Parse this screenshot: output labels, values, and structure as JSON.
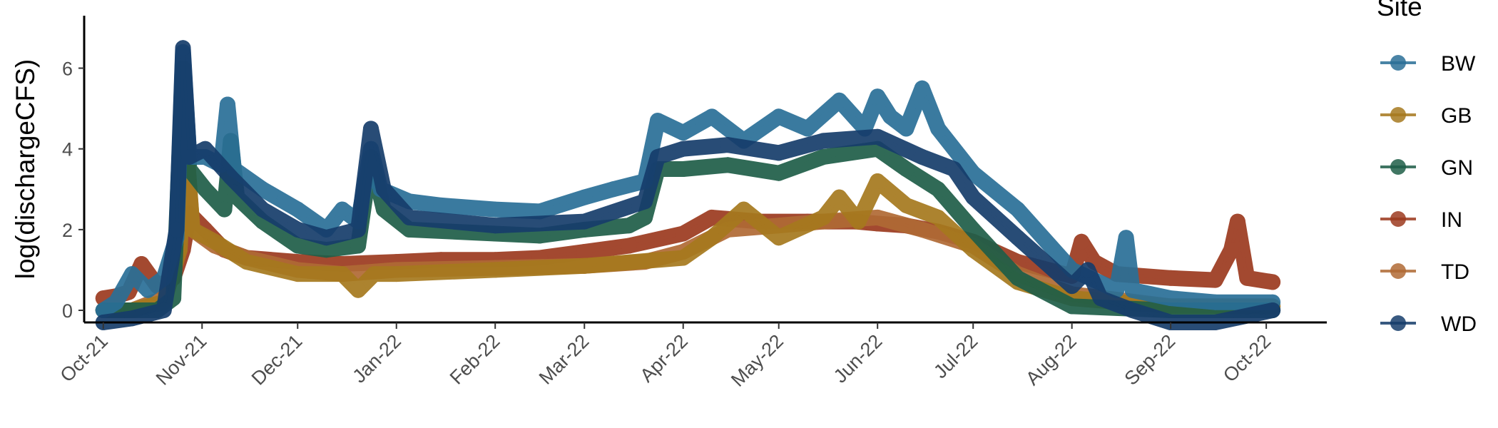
{
  "chart_data": {
    "type": "line",
    "title": "",
    "xlabel": "",
    "ylabel": "log(dischargeCFS)",
    "x_axis_type": "date",
    "xlim": [
      "2021-09-25",
      "2022-10-20"
    ],
    "ylim": [
      -0.3,
      7.3
    ],
    "y_ticks": [
      0,
      2,
      4,
      6
    ],
    "x_ticks": [
      {
        "date": "2021-10-01",
        "label": "Oct-21"
      },
      {
        "date": "2021-11-01",
        "label": "Nov-21"
      },
      {
        "date": "2021-12-01",
        "label": "Dec-21"
      },
      {
        "date": "2022-01-01",
        "label": "Jan-22"
      },
      {
        "date": "2022-02-01",
        "label": "Feb-22"
      },
      {
        "date": "2022-03-01",
        "label": "Mar-22"
      },
      {
        "date": "2022-04-01",
        "label": "Apr-22"
      },
      {
        "date": "2022-05-01",
        "label": "May-22"
      },
      {
        "date": "2022-06-01",
        "label": "Jun-22"
      },
      {
        "date": "2022-07-01",
        "label": "Jul-22"
      },
      {
        "date": "2022-08-01",
        "label": "Aug-22"
      },
      {
        "date": "2022-09-01",
        "label": "Sep-22"
      },
      {
        "date": "2022-10-01",
        "label": "Oct-22"
      }
    ],
    "grid": false,
    "legend": {
      "title": "Site",
      "position": "right"
    },
    "series": [
      {
        "name": "IN",
        "color": "#9c3a1f",
        "x": [
          "2021-10-01",
          "2021-10-05",
          "2021-10-09",
          "2021-10-13",
          "2021-10-18",
          "2021-10-23",
          "2021-10-26",
          "2021-10-28",
          "2021-11-02",
          "2021-11-08",
          "2021-11-15",
          "2021-12-01",
          "2021-12-15",
          "2022-01-01",
          "2022-01-15",
          "2022-02-01",
          "2022-02-15",
          "2022-03-01",
          "2022-03-15",
          "2022-04-01",
          "2022-04-10",
          "2022-04-25",
          "2022-05-10",
          "2022-05-25",
          "2022-06-01",
          "2022-06-10",
          "2022-06-20",
          "2022-07-01",
          "2022-07-15",
          "2022-08-01",
          "2022-08-04",
          "2022-08-08",
          "2022-08-15",
          "2022-09-01",
          "2022-09-15",
          "2022-09-20",
          "2022-09-22",
          "2022-09-25",
          "2022-10-03"
        ],
        "y": [
          0.3,
          0.35,
          0.45,
          1.15,
          0.6,
          0.8,
          1.5,
          2.4,
          2.0,
          1.5,
          1.3,
          1.2,
          1.15,
          1.2,
          1.25,
          1.25,
          1.3,
          1.45,
          1.6,
          1.9,
          2.3,
          2.2,
          2.2,
          2.2,
          2.15,
          2.1,
          1.95,
          1.7,
          1.2,
          0.85,
          1.7,
          1.2,
          0.9,
          0.8,
          0.75,
          1.5,
          2.2,
          0.8,
          0.7
        ]
      },
      {
        "name": "TD",
        "color": "#b06a35",
        "x": [
          "2021-10-01",
          "2021-10-10",
          "2021-10-20",
          "2021-10-25",
          "2021-10-27",
          "2021-10-29",
          "2021-11-05",
          "2021-11-15",
          "2021-12-01",
          "2021-12-15",
          "2022-01-01",
          "2022-02-01",
          "2022-03-01",
          "2022-03-20",
          "2022-04-01",
          "2022-04-15",
          "2022-05-01",
          "2022-05-15",
          "2022-06-01",
          "2022-06-15",
          "2022-07-01",
          "2022-07-15",
          "2022-08-01",
          "2022-09-01",
          "2022-10-03"
        ],
        "y": [
          0,
          0,
          0.3,
          1.8,
          4.1,
          2.0,
          1.6,
          1.3,
          1.0,
          0.9,
          1.0,
          1.05,
          1.1,
          1.2,
          1.45,
          2.0,
          2.1,
          2.2,
          2.3,
          2.0,
          1.6,
          0.9,
          0.4,
          0.1,
          0.1
        ]
      },
      {
        "name": "GB",
        "color": "#a6791e",
        "x": [
          "2021-10-01",
          "2021-10-10",
          "2021-10-20",
          "2021-10-25",
          "2021-10-27",
          "2021-10-29",
          "2021-11-05",
          "2021-11-15",
          "2021-12-01",
          "2021-12-15",
          "2021-12-20",
          "2021-12-25",
          "2022-01-01",
          "2022-02-01",
          "2022-03-01",
          "2022-04-01",
          "2022-04-10",
          "2022-04-20",
          "2022-05-01",
          "2022-05-15",
          "2022-05-20",
          "2022-05-26",
          "2022-06-01",
          "2022-06-10",
          "2022-06-20",
          "2022-07-01",
          "2022-07-15",
          "2022-08-01",
          "2022-09-01",
          "2022-10-03"
        ],
        "y": [
          0,
          0,
          0.2,
          1.5,
          4.2,
          2.0,
          1.7,
          1.2,
          0.9,
          0.9,
          0.5,
          0.9,
          0.9,
          1.0,
          1.1,
          1.3,
          1.8,
          2.5,
          1.8,
          2.3,
          2.8,
          2.2,
          3.2,
          2.6,
          2.3,
          1.5,
          0.7,
          0.3,
          0.1,
          0.1
        ]
      },
      {
        "name": "GN",
        "color": "#1f5e48",
        "x": [
          "2021-10-01",
          "2021-10-10",
          "2021-10-18",
          "2021-10-23",
          "2021-10-26",
          "2021-10-28",
          "2021-11-02",
          "2021-11-08",
          "2021-11-10",
          "2021-11-12",
          "2021-11-20",
          "2021-12-01",
          "2021-12-10",
          "2021-12-20",
          "2021-12-24",
          "2021-12-28",
          "2022-01-05",
          "2022-02-01",
          "2022-02-15",
          "2022-03-01",
          "2022-03-15",
          "2022-03-20",
          "2022-03-24",
          "2022-04-01",
          "2022-04-15",
          "2022-05-01",
          "2022-05-15",
          "2022-06-01",
          "2022-06-10",
          "2022-06-20",
          "2022-07-01",
          "2022-07-15",
          "2022-08-01",
          "2022-09-01",
          "2022-10-03"
        ],
        "y": [
          0,
          0,
          0,
          0.3,
          6.0,
          3.5,
          3.0,
          2.5,
          4.2,
          2.8,
          2.2,
          1.6,
          1.5,
          1.6,
          3.8,
          2.5,
          2.0,
          1.9,
          1.85,
          2.0,
          2.1,
          2.3,
          3.5,
          3.5,
          3.6,
          3.4,
          3.8,
          4.0,
          3.5,
          3.0,
          2.0,
          0.8,
          0.1,
          0.0,
          0.0
        ]
      },
      {
        "name": "BW",
        "color": "#2a6f97",
        "x": [
          "2021-10-01",
          "2021-10-05",
          "2021-10-10",
          "2021-10-15",
          "2021-10-20",
          "2021-10-24",
          "2021-10-26",
          "2021-10-28",
          "2021-11-02",
          "2021-11-07",
          "2021-11-09",
          "2021-11-11",
          "2021-11-20",
          "2021-12-01",
          "2021-12-10",
          "2021-12-15",
          "2021-12-20",
          "2021-12-24",
          "2021-12-27",
          "2022-01-05",
          "2022-01-15",
          "2022-02-01",
          "2022-02-15",
          "2022-03-01",
          "2022-03-10",
          "2022-03-20",
          "2022-03-24",
          "2022-04-01",
          "2022-04-10",
          "2022-04-20",
          "2022-05-01",
          "2022-05-10",
          "2022-05-20",
          "2022-05-28",
          "2022-06-01",
          "2022-06-05",
          "2022-06-10",
          "2022-06-15",
          "2022-06-20",
          "2022-07-01",
          "2022-07-15",
          "2022-08-01",
          "2022-08-15",
          "2022-08-18",
          "2022-08-20",
          "2022-09-01",
          "2022-09-15",
          "2022-10-03"
        ],
        "y": [
          0,
          0.2,
          0.9,
          0.5,
          0.8,
          1.8,
          6.4,
          3.8,
          3.8,
          3.6,
          5.1,
          3.5,
          3.0,
          2.5,
          2.0,
          2.5,
          2.2,
          4.0,
          3.0,
          2.7,
          2.6,
          2.5,
          2.45,
          2.8,
          3.0,
          3.2,
          4.7,
          4.4,
          4.8,
          4.2,
          4.8,
          4.5,
          5.2,
          4.5,
          5.3,
          4.8,
          4.5,
          5.5,
          4.5,
          3.4,
          2.5,
          1.0,
          0.5,
          1.8,
          0.5,
          0.3,
          0.2,
          0.2
        ]
      },
      {
        "name": "WD",
        "color": "#163d6b",
        "x": [
          "2021-10-01",
          "2021-10-10",
          "2021-10-20",
          "2021-10-24",
          "2021-10-26",
          "2021-10-28",
          "2021-11-02",
          "2021-11-10",
          "2021-11-20",
          "2021-12-01",
          "2021-12-10",
          "2021-12-20",
          "2021-12-24",
          "2021-12-28",
          "2022-01-05",
          "2022-02-01",
          "2022-03-01",
          "2022-03-20",
          "2022-03-24",
          "2022-04-01",
          "2022-04-15",
          "2022-05-01",
          "2022-05-15",
          "2022-06-01",
          "2022-06-15",
          "2022-06-25",
          "2022-07-01",
          "2022-07-15",
          "2022-08-01",
          "2022-08-06",
          "2022-08-10",
          "2022-08-20",
          "2022-09-01",
          "2022-09-15",
          "2022-10-03"
        ],
        "y": [
          -0.3,
          -0.2,
          0.0,
          2.0,
          6.5,
          3.8,
          4.0,
          3.3,
          2.5,
          2.0,
          1.8,
          2.0,
          4.5,
          3.0,
          2.3,
          2.1,
          2.2,
          2.7,
          3.8,
          4.0,
          4.1,
          3.9,
          4.2,
          4.3,
          3.8,
          3.5,
          2.8,
          1.8,
          0.6,
          1.0,
          0.3,
          0.0,
          -0.3,
          -0.3,
          0.0
        ]
      }
    ],
    "legend_order": [
      "BW",
      "GB",
      "GN",
      "IN",
      "TD",
      "WD"
    ]
  }
}
